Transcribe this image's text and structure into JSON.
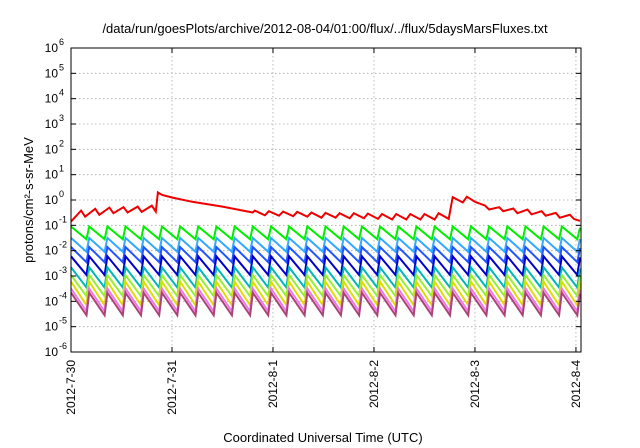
{
  "chart_data": {
    "type": "line",
    "title": "/data/run/goesPlots/archive/2012-08-04/01:00/flux/../flux/5daysMarsFluxes.txt",
    "xlabel": "Coordinated Universal Time (UTC)",
    "ylabel": "protons/cm²-s-sr-MeV",
    "x_unit": "days",
    "x_range": [
      0,
      5.05
    ],
    "x_ticks": [
      {
        "label": "2012-7-30",
        "x": 0
      },
      {
        "label": "2012-7-31",
        "x": 1
      },
      {
        "label": "2012-8-1",
        "x": 2
      },
      {
        "label": "2012-8-2",
        "x": 3
      },
      {
        "label": "2012-8-3",
        "x": 4
      },
      {
        "label": "2012-8-4",
        "x": 5
      }
    ],
    "y_scale": "log",
    "ylim": [
      1e-06,
      1000000.0
    ],
    "y_ticks": [
      {
        "label": "10",
        "exp": "-6",
        "value": 1e-06
      },
      {
        "label": "10",
        "exp": "-5",
        "value": 1e-05
      },
      {
        "label": "10",
        "exp": "-4",
        "value": 0.0001
      },
      {
        "label": "10",
        "exp": "-3",
        "value": 0.001
      },
      {
        "label": "10",
        "exp": "-2",
        "value": 0.01
      },
      {
        "label": "10",
        "exp": "-1",
        "value": 0.1
      },
      {
        "label": "10",
        "exp": "0",
        "value": 1
      },
      {
        "label": "10",
        "exp": "1",
        "value": 10
      },
      {
        "label": "10",
        "exp": "2",
        "value": 100
      },
      {
        "label": "10",
        "exp": "3",
        "value": 1000
      },
      {
        "label": "10",
        "exp": "4",
        "value": 10000
      },
      {
        "label": "10",
        "exp": "5",
        "value": 100000
      },
      {
        "label": "10",
        "exp": "6",
        "value": 1000000
      }
    ],
    "grid": true,
    "series": [
      {
        "color": "#ee0000",
        "x": [
          0,
          0.1,
          0.14,
          0.24,
          0.28,
          0.38,
          0.42,
          0.52,
          0.56,
          0.66,
          0.7,
          0.8,
          0.84,
          0.86,
          0.9,
          1.0,
          1.2,
          1.5,
          1.8,
          1.82,
          1.92,
          1.96,
          2.06,
          2.1,
          2.2,
          2.24,
          2.34,
          2.38,
          2.48,
          2.52,
          2.62,
          2.66,
          2.76,
          2.8,
          2.9,
          2.94,
          3.04,
          3.08,
          3.18,
          3.22,
          3.32,
          3.36,
          3.46,
          3.5,
          3.6,
          3.64,
          3.74,
          3.78,
          3.88,
          3.92,
          4.0,
          4.1,
          4.14,
          4.24,
          4.28,
          4.38,
          4.42,
          4.52,
          4.56,
          4.66,
          4.7,
          4.8,
          4.84,
          4.94,
          4.98,
          5.04
        ],
        "y": [
          0.14,
          0.38,
          0.22,
          0.45,
          0.26,
          0.5,
          0.3,
          0.52,
          0.32,
          0.55,
          0.34,
          0.6,
          0.35,
          2.0,
          1.6,
          1.25,
          0.85,
          0.55,
          0.32,
          0.38,
          0.25,
          0.36,
          0.24,
          0.35,
          0.23,
          0.34,
          0.22,
          0.32,
          0.2,
          0.31,
          0.2,
          0.3,
          0.19,
          0.3,
          0.19,
          0.29,
          0.18,
          0.28,
          0.17,
          0.28,
          0.17,
          0.28,
          0.17,
          0.28,
          0.17,
          0.3,
          0.18,
          1.3,
          0.8,
          1.35,
          0.85,
          0.6,
          0.42,
          0.52,
          0.36,
          0.46,
          0.3,
          0.42,
          0.27,
          0.36,
          0.24,
          0.31,
          0.2,
          0.26,
          0.18,
          0.15
        ]
      },
      {
        "color": "#00ee00",
        "cycles": 28,
        "y_low": 0.028,
        "y_high": 0.09
      },
      {
        "color": "#33aaff",
        "cycles": 28,
        "y_low": 0.009,
        "y_high": 0.032
      },
      {
        "color": "#2255ff",
        "cycles": 28,
        "y_low": 0.0035,
        "y_high": 0.014
      },
      {
        "color": "#0000cc",
        "cycles": 28,
        "y_low": 0.0011,
        "y_high": 0.006
      },
      {
        "color": "#00b8b8",
        "cycles": 28,
        "y_low": 0.00035,
        "y_high": 0.0022
      },
      {
        "color": "#99ee33",
        "cycles": 28,
        "y_low": 0.00016,
        "y_high": 0.0011
      },
      {
        "color": "#dddd00",
        "cycles": 28,
        "y_low": 7e-05,
        "y_high": 0.0006
      },
      {
        "color": "#ee77ee",
        "cycles": 28,
        "y_low": 4e-05,
        "y_high": 0.00032
      },
      {
        "color": "#aa4477",
        "cycles": 28,
        "y_low": 2.8e-05,
        "y_high": 0.00022
      }
    ]
  }
}
